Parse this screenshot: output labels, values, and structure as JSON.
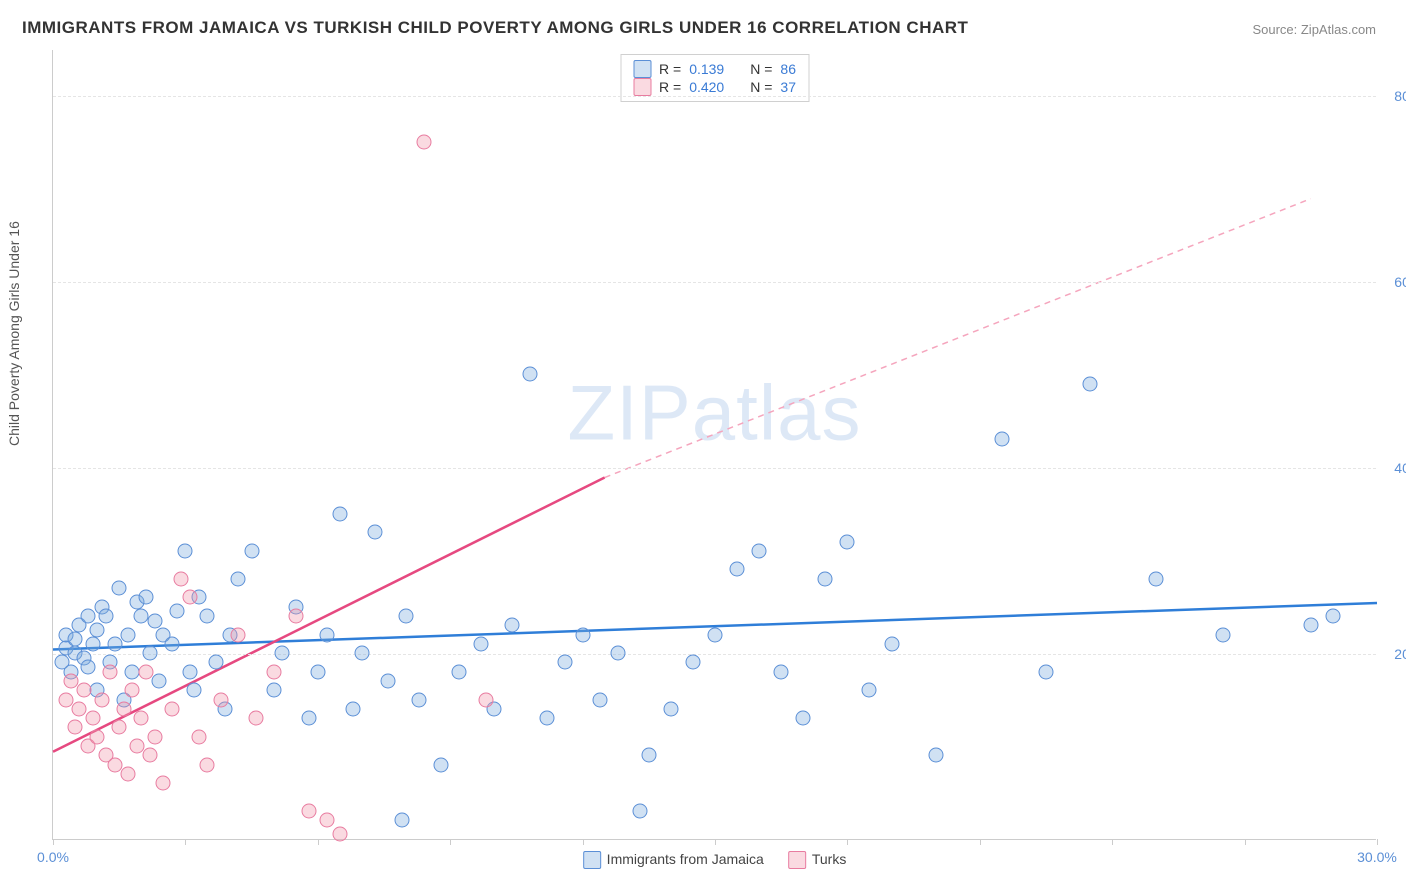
{
  "title": "IMMIGRANTS FROM JAMAICA VS TURKISH CHILD POVERTY AMONG GIRLS UNDER 16 CORRELATION CHART",
  "source": "Source: ZipAtlas.com",
  "ylabel": "Child Poverty Among Girls Under 16",
  "watermark": "ZIPatlas",
  "chart": {
    "type": "scatter",
    "xlim": [
      0,
      30
    ],
    "ylim": [
      0,
      85
    ],
    "xtick_positions": [
      0,
      3,
      6,
      9,
      12,
      15,
      18,
      21,
      24,
      27,
      30
    ],
    "xtick_labels": {
      "0": "0.0%",
      "30": "30.0%"
    },
    "ytick_positions": [
      20,
      40,
      60,
      80
    ],
    "ytick_labels": [
      "20.0%",
      "40.0%",
      "60.0%",
      "80.0%"
    ],
    "grid_color": "#e5e5e5",
    "axis_color": "#cccccc",
    "background_color": "#ffffff",
    "tick_label_color": "#5b8fd6",
    "tick_label_fontsize": 14,
    "title_fontsize": 17,
    "marker_radius": 7.5,
    "series": [
      {
        "name": "Immigrants from Jamaica",
        "key": "a",
        "color_fill": "rgba(120,170,220,0.35)",
        "color_stroke": "#5b8fd6",
        "R": "0.139",
        "N": "86",
        "trend": {
          "x1": 0,
          "y1": 20.5,
          "x2": 30,
          "y2": 25.5,
          "stroke": "#2f7ed8",
          "width": 2.5,
          "dash": "none"
        },
        "points": [
          [
            0.2,
            19
          ],
          [
            0.3,
            20.5
          ],
          [
            0.3,
            22
          ],
          [
            0.4,
            18
          ],
          [
            0.5,
            20
          ],
          [
            0.5,
            21.5
          ],
          [
            0.6,
            23
          ],
          [
            0.7,
            19.5
          ],
          [
            0.8,
            18.5
          ],
          [
            0.8,
            24
          ],
          [
            0.9,
            21
          ],
          [
            1.0,
            16
          ],
          [
            1.0,
            22.5
          ],
          [
            1.1,
            25
          ],
          [
            1.2,
            24
          ],
          [
            1.3,
            19
          ],
          [
            1.4,
            21
          ],
          [
            1.5,
            27
          ],
          [
            1.6,
            15
          ],
          [
            1.7,
            22
          ],
          [
            1.8,
            18
          ],
          [
            1.9,
            25.5
          ],
          [
            2.0,
            24
          ],
          [
            2.1,
            26
          ],
          [
            2.2,
            20
          ],
          [
            2.3,
            23.5
          ],
          [
            2.4,
            17
          ],
          [
            2.5,
            22
          ],
          [
            2.7,
            21
          ],
          [
            2.8,
            24.5
          ],
          [
            3.0,
            31
          ],
          [
            3.1,
            18
          ],
          [
            3.2,
            16
          ],
          [
            3.3,
            26
          ],
          [
            3.5,
            24
          ],
          [
            3.7,
            19
          ],
          [
            3.9,
            14
          ],
          [
            4.0,
            22
          ],
          [
            4.2,
            28
          ],
          [
            4.5,
            31
          ],
          [
            5.0,
            16
          ],
          [
            5.2,
            20
          ],
          [
            5.5,
            25
          ],
          [
            5.8,
            13
          ],
          [
            6.0,
            18
          ],
          [
            6.2,
            22
          ],
          [
            6.5,
            35
          ],
          [
            6.8,
            14
          ],
          [
            7.0,
            20
          ],
          [
            7.3,
            33
          ],
          [
            7.6,
            17
          ],
          [
            7.9,
            2
          ],
          [
            8.0,
            24
          ],
          [
            8.3,
            15
          ],
          [
            8.8,
            8
          ],
          [
            9.2,
            18
          ],
          [
            9.7,
            21
          ],
          [
            10.0,
            14
          ],
          [
            10.4,
            23
          ],
          [
            10.8,
            50
          ],
          [
            11.2,
            13
          ],
          [
            11.6,
            19
          ],
          [
            12.0,
            22
          ],
          [
            12.4,
            15
          ],
          [
            12.8,
            20
          ],
          [
            13.3,
            3
          ],
          [
            13.5,
            9
          ],
          [
            14.0,
            14
          ],
          [
            14.5,
            19
          ],
          [
            15.0,
            22
          ],
          [
            15.5,
            29
          ],
          [
            16.0,
            31
          ],
          [
            16.5,
            18
          ],
          [
            17.0,
            13
          ],
          [
            17.5,
            28
          ],
          [
            18.0,
            32
          ],
          [
            18.5,
            16
          ],
          [
            19.0,
            21
          ],
          [
            20.0,
            9
          ],
          [
            21.5,
            43
          ],
          [
            22.5,
            18
          ],
          [
            23.5,
            49
          ],
          [
            25.0,
            28
          ],
          [
            26.5,
            22
          ],
          [
            28.5,
            23
          ],
          [
            29.0,
            24
          ]
        ]
      },
      {
        "name": "Turks",
        "key": "b",
        "color_fill": "rgba(240,150,170,0.35)",
        "color_stroke": "#e87ca0",
        "R": "0.420",
        "N": "37",
        "trend_solid": {
          "x1": 0,
          "y1": 9.5,
          "x2": 12.5,
          "y2": 39.0,
          "stroke": "#e64980",
          "width": 2.5,
          "dash": "none"
        },
        "trend_dash": {
          "x1": 12.5,
          "y1": 39.0,
          "x2": 28.5,
          "y2": 69.0,
          "stroke": "#f5a5bd",
          "width": 1.5,
          "dash": "6,5"
        },
        "points": [
          [
            0.3,
            15
          ],
          [
            0.4,
            17
          ],
          [
            0.5,
            12
          ],
          [
            0.6,
            14
          ],
          [
            0.7,
            16
          ],
          [
            0.8,
            10
          ],
          [
            0.9,
            13
          ],
          [
            1.0,
            11
          ],
          [
            1.1,
            15
          ],
          [
            1.2,
            9
          ],
          [
            1.3,
            18
          ],
          [
            1.4,
            8
          ],
          [
            1.5,
            12
          ],
          [
            1.6,
            14
          ],
          [
            1.7,
            7
          ],
          [
            1.8,
            16
          ],
          [
            1.9,
            10
          ],
          [
            2.0,
            13
          ],
          [
            2.1,
            18
          ],
          [
            2.2,
            9
          ],
          [
            2.3,
            11
          ],
          [
            2.5,
            6
          ],
          [
            2.7,
            14
          ],
          [
            2.9,
            28
          ],
          [
            3.1,
            26
          ],
          [
            3.3,
            11
          ],
          [
            3.5,
            8
          ],
          [
            3.8,
            15
          ],
          [
            4.2,
            22
          ],
          [
            4.6,
            13
          ],
          [
            5.0,
            18
          ],
          [
            5.5,
            24
          ],
          [
            5.8,
            3
          ],
          [
            6.2,
            2
          ],
          [
            6.5,
            0.5
          ],
          [
            8.4,
            75
          ],
          [
            9.8,
            15
          ]
        ]
      }
    ],
    "legend_top": {
      "border_color": "#d0d0d0",
      "rows": [
        {
          "swatch": "a",
          "r_label": "R =",
          "r_value": "0.139",
          "n_label": "N =",
          "n_value": "86"
        },
        {
          "swatch": "b",
          "r_label": "R =",
          "r_value": "0.420",
          "n_label": "N =",
          "n_value": "37"
        }
      ]
    },
    "legend_bottom": [
      {
        "swatch": "a",
        "label": "Immigrants from Jamaica"
      },
      {
        "swatch": "b",
        "label": "Turks"
      }
    ]
  }
}
